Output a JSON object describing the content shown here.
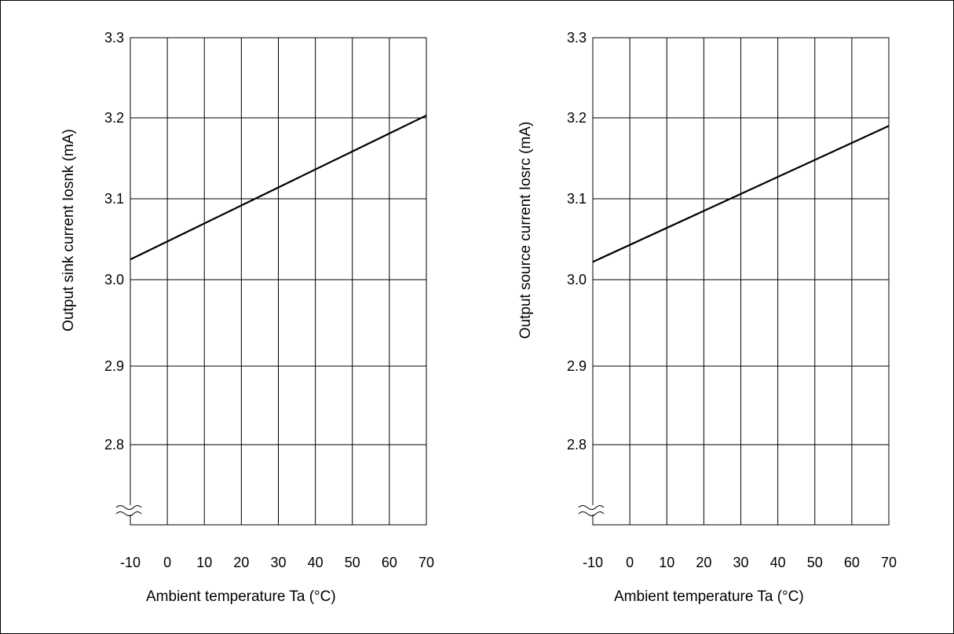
{
  "chart_data": [
    {
      "type": "line",
      "xlabel": "Ambient temperature  Ta    (°C)",
      "ylabel": "Output sink current   Iosnk  (mA)",
      "xlim": [
        -10,
        70
      ],
      "ylim": [
        2.7,
        3.3
      ],
      "x_ticks": [
        "-10",
        "0",
        "10",
        "20",
        "30",
        "40",
        "50",
        "60",
        "70"
      ],
      "y_ticks": [
        "3.3",
        "3.2",
        "3.1",
        "3.0",
        "2.9",
        "2.8"
      ],
      "axis_break": "y",
      "grid": true,
      "series": [
        {
          "x": [
            -10,
            70
          ],
          "y": [
            3.025,
            3.203
          ]
        }
      ]
    },
    {
      "type": "line",
      "xlabel": "Ambient temperature  Ta    (°C)",
      "ylabel": "Output source current   Iosrc  (mA)",
      "xlim": [
        -10,
        70
      ],
      "ylim": [
        2.7,
        3.3
      ],
      "x_ticks": [
        "-10",
        "0",
        "10",
        "20",
        "30",
        "40",
        "50",
        "60",
        "70"
      ],
      "y_ticks": [
        "3.3",
        "3.2",
        "3.1",
        "3.0",
        "2.9",
        "2.8"
      ],
      "axis_break": "y",
      "grid": true,
      "series": [
        {
          "x": [
            -10,
            70
          ],
          "y": [
            3.022,
            3.19
          ]
        }
      ]
    }
  ]
}
